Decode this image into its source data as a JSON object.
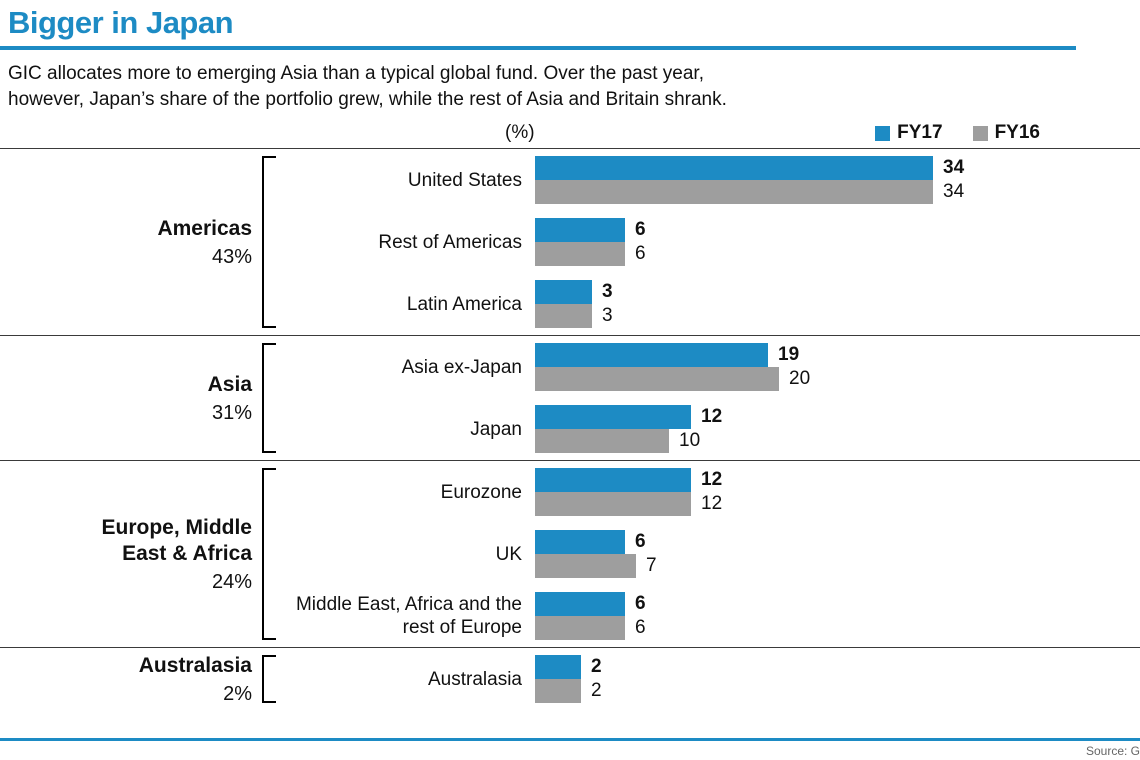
{
  "header": {
    "title": "Bigger in Japan",
    "subtitle_lines": [
      "GIC allocates more to emerging Asia than a typical global fund. Over the past year,",
      "however, Japan’s share of the portfolio grew, while the rest of Asia and Britain shrank."
    ]
  },
  "colors": {
    "accent_blue": "#1d8bc4",
    "bar_gray": "#9e9e9e"
  },
  "chart_data": {
    "type": "bar",
    "orientation": "horizontal",
    "unit_label": "(%)",
    "xlim": [
      0,
      34
    ],
    "grid": false,
    "legend_position": "top-right",
    "legend": [
      {
        "name": "FY17",
        "color": "#1d8bc4"
      },
      {
        "name": "FY16",
        "color": "#9e9e9e"
      }
    ],
    "groups": [
      {
        "region": "Americas",
        "share": "43%",
        "rows": [
          {
            "label": "United States",
            "fy17": 34,
            "fy16": 34
          },
          {
            "label": "Rest of Americas",
            "fy17": 6,
            "fy16": 6
          },
          {
            "label": "Latin America",
            "fy17": 3,
            "fy16": 3
          }
        ]
      },
      {
        "region": "Asia",
        "share": "31%",
        "rows": [
          {
            "label": "Asia ex-Japan",
            "fy17": 19,
            "fy16": 20
          },
          {
            "label": "Japan",
            "fy17": 12,
            "fy16": 10
          }
        ]
      },
      {
        "region": "Europe, Middle East & Africa",
        "share": "24%",
        "rows": [
          {
            "label": "Eurozone",
            "fy17": 12,
            "fy16": 12
          },
          {
            "label": "UK",
            "fy17": 6,
            "fy16": 7
          },
          {
            "label": "Middle East, Africa and the rest of Europe",
            "fy17": 6,
            "fy16": 6
          }
        ]
      },
      {
        "region": "Australasia",
        "share": "2%",
        "rows": [
          {
            "label": "Australasia",
            "fy17": 2,
            "fy16": 2
          }
        ]
      }
    ]
  },
  "footer": {
    "source": "Source: G"
  }
}
